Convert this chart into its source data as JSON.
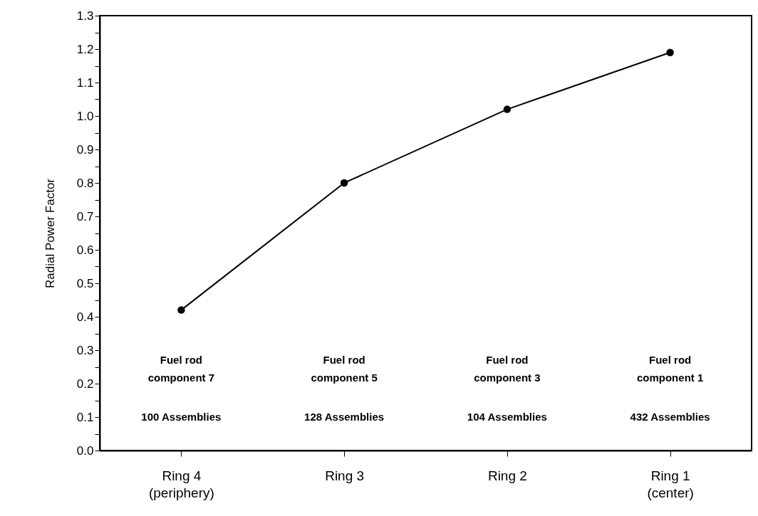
{
  "chart_data": {
    "type": "line",
    "ylabel": "Radial Power Factor",
    "categories": [
      "Ring 4\n(periphery)",
      "Ring 3",
      "Ring 2",
      "Ring 1\n(center)"
    ],
    "series": [
      {
        "color": "#000000",
        "values": [
          0.42,
          0.8,
          1.02,
          1.19
        ]
      }
    ],
    "ylim": [
      0,
      1.3
    ],
    "yticks": [
      {
        "value": 0,
        "label": "0.0"
      },
      {
        "value": 0.05,
        "label": null
      },
      {
        "value": 0.1,
        "label": "0.1"
      },
      {
        "value": 0.15,
        "label": null
      },
      {
        "value": 0.2,
        "label": "0.2"
      },
      {
        "value": 0.25,
        "label": null
      },
      {
        "value": 0.3,
        "label": "0.3"
      },
      {
        "value": 0.35,
        "label": null
      },
      {
        "value": 0.4,
        "label": "0.4"
      },
      {
        "value": 0.45,
        "label": null
      },
      {
        "value": 0.5,
        "label": "0.5"
      },
      {
        "value": 0.55,
        "label": null
      },
      {
        "value": 0.6,
        "label": "0.6"
      },
      {
        "value": 0.65,
        "label": null
      },
      {
        "value": 0.7,
        "label": "0.7"
      },
      {
        "value": 0.75,
        "label": null
      },
      {
        "value": 0.8,
        "label": "0.8"
      },
      {
        "value": 0.85,
        "label": null
      },
      {
        "value": 0.9,
        "label": "0.9"
      },
      {
        "value": 0.95,
        "label": null
      },
      {
        "value": 1,
        "label": "1.0"
      },
      {
        "value": 1.05,
        "label": null
      },
      {
        "value": 1.1,
        "label": "1.1"
      },
      {
        "value": 1.15,
        "label": null
      },
      {
        "value": 1.2,
        "label": "1.2"
      },
      {
        "value": 1.25,
        "label": null
      },
      {
        "value": 1.3,
        "label": "1.3"
      }
    ],
    "grid": false,
    "marker": "circle",
    "line_style": "solid",
    "annotations": [
      "Fuel rod\ncomponent 7",
      "Fuel rod\ncomponent 5",
      "Fuel rod\ncomponent 3",
      "Fuel rod\ncomponent 1",
      "100 Assemblies",
      "128 Assemblies",
      "104 Assemblies",
      "432 Assemblies"
    ]
  }
}
